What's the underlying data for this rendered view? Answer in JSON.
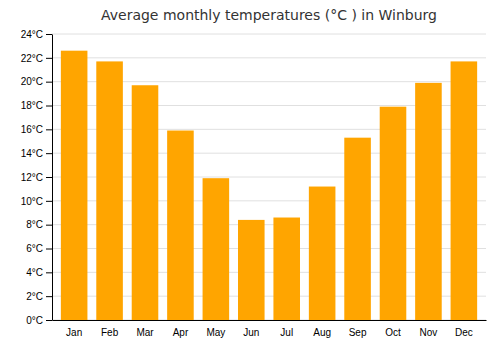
{
  "chart_data": {
    "type": "bar",
    "title": "Average monthly temperatures (°C ) in Winburg",
    "categories": [
      "Jan",
      "Feb",
      "Mar",
      "Apr",
      "May",
      "Jun",
      "Jul",
      "Aug",
      "Sep",
      "Oct",
      "Nov",
      "Dec"
    ],
    "values": [
      22.6,
      21.7,
      19.7,
      15.9,
      11.9,
      8.4,
      8.6,
      11.2,
      15.3,
      17.9,
      19.9,
      21.7
    ],
    "color": "#FFA500",
    "ylim": [
      0,
      24
    ],
    "yticks": [
      {
        "value": 0,
        "label": "0°C"
      },
      {
        "value": 2,
        "label": "2°C"
      },
      {
        "value": 4,
        "label": "4°C"
      },
      {
        "value": 6,
        "label": "6°C"
      },
      {
        "value": 8,
        "label": "8°C"
      },
      {
        "value": 10,
        "label": "10°C"
      },
      {
        "value": 12,
        "label": "12°C"
      },
      {
        "value": 14,
        "label": "14°C"
      },
      {
        "value": 16,
        "label": "16°C"
      },
      {
        "value": 18,
        "label": "18°C"
      },
      {
        "value": 20,
        "label": "20°C"
      },
      {
        "value": 22,
        "label": "22°C"
      },
      {
        "value": 24,
        "label": "24°C"
      }
    ],
    "grid": true
  }
}
